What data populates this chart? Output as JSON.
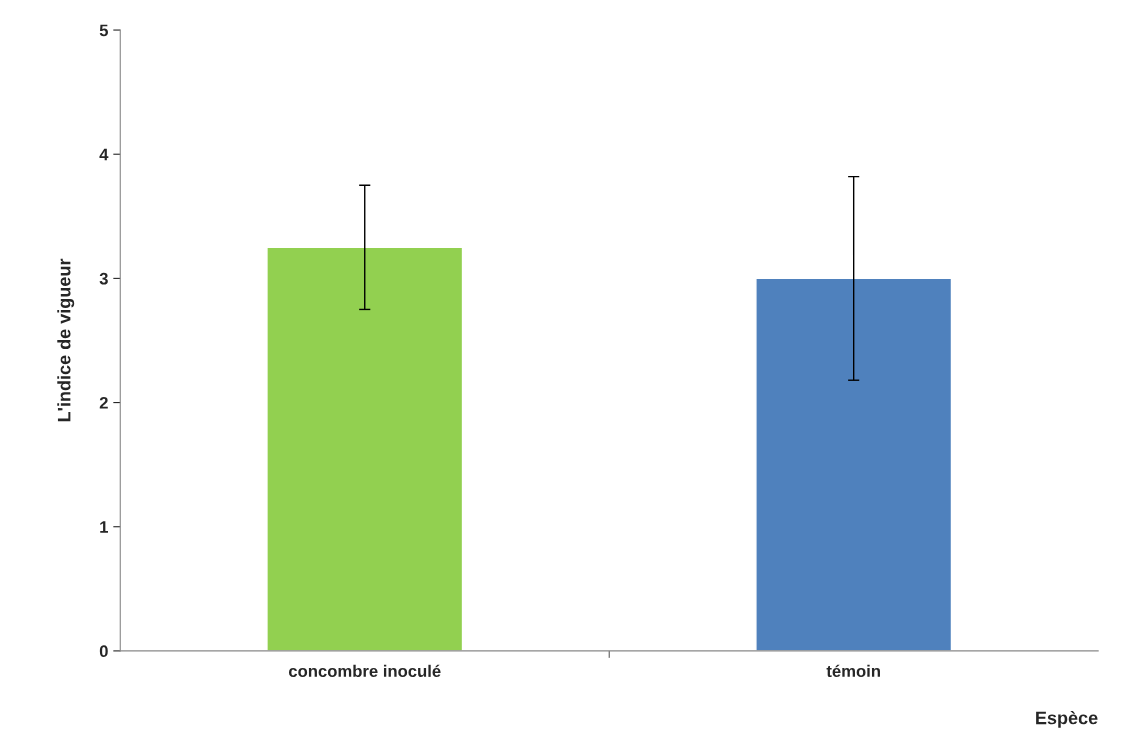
{
  "chart_data": {
    "type": "bar",
    "xlabel": "Espèce",
    "ylabel": "L'indice de vigueur",
    "categories": [
      "concombre inoculé",
      "témoin"
    ],
    "values": [
      3.25,
      3.0
    ],
    "colors": [
      "#92d050",
      "#4f81bd"
    ],
    "errors": [
      0.5,
      0.82
    ],
    "ylim": [
      0,
      5
    ],
    "yticks": [
      0,
      1,
      2,
      3,
      4,
      5
    ],
    "grid": false
  }
}
